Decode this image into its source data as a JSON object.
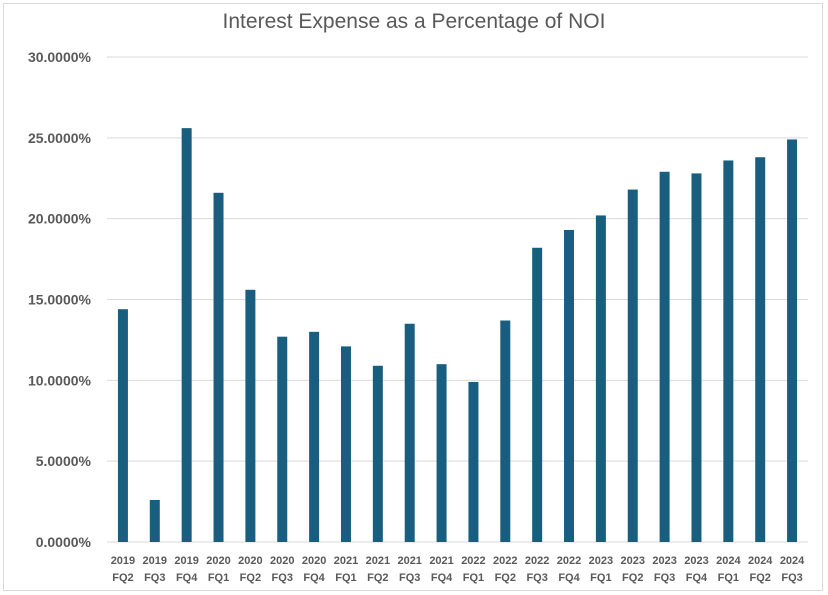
{
  "chart_data": {
    "type": "bar",
    "title": "Interest Expense as a Percentage of NOI",
    "xlabel": "",
    "ylabel": "",
    "ylim": [
      0,
      30
    ],
    "grid": true,
    "bar_color": "#1a5e7f",
    "grid_color": "#d9d9d9",
    "y_ticks": [
      "0.0000%",
      "5.0000%",
      "10.0000%",
      "15.0000%",
      "20.0000%",
      "25.0000%",
      "30.0000%"
    ],
    "categories": [
      [
        "2019",
        "FQ2"
      ],
      [
        "2019",
        "FQ3"
      ],
      [
        "2019",
        "FQ4"
      ],
      [
        "2020",
        "FQ1"
      ],
      [
        "2020",
        "FQ2"
      ],
      [
        "2020",
        "FQ3"
      ],
      [
        "2020",
        "FQ4"
      ],
      [
        "2021",
        "FQ1"
      ],
      [
        "2021",
        "FQ2"
      ],
      [
        "2021",
        "FQ3"
      ],
      [
        "2021",
        "FQ4"
      ],
      [
        "2022",
        "FQ1"
      ],
      [
        "2022",
        "FQ2"
      ],
      [
        "2022",
        "FQ3"
      ],
      [
        "2022",
        "FQ4"
      ],
      [
        "2023",
        "FQ1"
      ],
      [
        "2023",
        "FQ2"
      ],
      [
        "2023",
        "FQ3"
      ],
      [
        "2023",
        "FQ4"
      ],
      [
        "2024",
        "FQ1"
      ],
      [
        "2024",
        "FQ2"
      ],
      [
        "2024",
        "FQ3"
      ]
    ],
    "values": [
      14.4,
      2.6,
      25.6,
      21.6,
      15.6,
      12.7,
      13.0,
      12.1,
      10.9,
      13.5,
      11.0,
      9.9,
      13.7,
      18.2,
      19.3,
      20.2,
      21.8,
      22.9,
      22.8,
      23.6,
      23.8,
      24.9
    ]
  }
}
